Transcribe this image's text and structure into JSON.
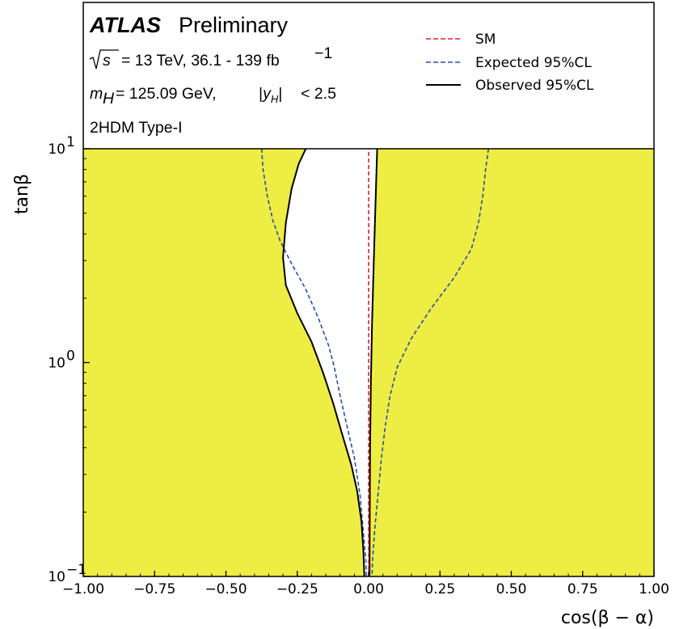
{
  "header": {
    "experiment": "ATLAS",
    "status": "Preliminary",
    "energy_line": "= 13 TeV, 36.1 - 139 fb",
    "energy_exp": "−1",
    "mass_line_value": "= 125.09 GeV,",
    "rapidity_cut": "< 2.5",
    "model": "2HDM Type-I"
  },
  "legend": [
    {
      "label": "SM",
      "color": "#e0202a",
      "style": "dashed"
    },
    {
      "label": "Expected 95%CL",
      "color": "#2a4fa0",
      "style": "dashed"
    },
    {
      "label": "Observed 95%CL",
      "color": "#000000",
      "style": "solid"
    }
  ],
  "colors": {
    "excluded_fill": "#eded44",
    "allowed_fill": "#ffffff"
  },
  "chart_data": {
    "type": "area",
    "xlabel": "cos(β − α)",
    "ylabel": "tanβ",
    "xlim": [
      -1.0,
      1.0
    ],
    "ylim": [
      0.1,
      10
    ],
    "yscale": "log",
    "x_ticks": [
      "−1.00",
      "−0.75",
      "−0.50",
      "−0.25",
      "0.00",
      "0.25",
      "0.50",
      "0.75",
      "1.00"
    ],
    "x_tick_values": [
      -1.0,
      -0.75,
      -0.5,
      -0.25,
      0.0,
      0.25,
      0.5,
      0.75,
      1.0
    ],
    "y_ticks": [
      {
        "base": "10",
        "exp": "−1",
        "value": 0.1
      },
      {
        "base": "10",
        "exp": "0",
        "value": 1
      },
      {
        "base": "10",
        "exp": "1",
        "value": 10
      }
    ],
    "series": [
      {
        "name": "SM",
        "points": [
          [
            0.0,
            0.1
          ],
          [
            0.0,
            10
          ]
        ]
      },
      {
        "name": "Expected 95%CL",
        "left": [
          [
            -0.375,
            10
          ],
          [
            -0.37,
            8
          ],
          [
            -0.355,
            6
          ],
          [
            -0.335,
            4.6
          ],
          [
            -0.31,
            3.7
          ],
          [
            -0.27,
            2.9
          ],
          [
            -0.22,
            2.2
          ],
          [
            -0.175,
            1.6
          ],
          [
            -0.14,
            1.2
          ],
          [
            -0.12,
            0.95
          ],
          [
            -0.1,
            0.7
          ],
          [
            -0.075,
            0.5
          ],
          [
            -0.05,
            0.36
          ],
          [
            -0.03,
            0.24
          ],
          [
            -0.018,
            0.16
          ],
          [
            -0.01,
            0.12
          ],
          [
            -0.008,
            0.1
          ]
        ],
        "right": [
          [
            0.42,
            10
          ],
          [
            0.41,
            8
          ],
          [
            0.4,
            6
          ],
          [
            0.385,
            4.5
          ],
          [
            0.36,
            3.4
          ],
          [
            0.3,
            2.5
          ],
          [
            0.22,
            1.8
          ],
          [
            0.15,
            1.3
          ],
          [
            0.1,
            0.95
          ],
          [
            0.075,
            0.7
          ],
          [
            0.058,
            0.5
          ],
          [
            0.045,
            0.36
          ],
          [
            0.034,
            0.25
          ],
          [
            0.022,
            0.17
          ],
          [
            0.014,
            0.12
          ],
          [
            0.012,
            0.1
          ]
        ]
      },
      {
        "name": "Observed 95%CL",
        "left": [
          [
            -0.22,
            10
          ],
          [
            -0.245,
            8.5
          ],
          [
            -0.27,
            6.5
          ],
          [
            -0.29,
            4.5
          ],
          [
            -0.3,
            3.1
          ],
          [
            -0.29,
            2.3
          ],
          [
            -0.25,
            1.7
          ],
          [
            -0.2,
            1.25
          ],
          [
            -0.16,
            0.9
          ],
          [
            -0.125,
            0.65
          ],
          [
            -0.09,
            0.45
          ],
          [
            -0.06,
            0.33
          ],
          [
            -0.04,
            0.25
          ],
          [
            -0.025,
            0.18
          ],
          [
            -0.018,
            0.13
          ],
          [
            -0.015,
            0.1
          ]
        ],
        "right": [
          [
            0.03,
            10
          ],
          [
            0.025,
            6
          ],
          [
            0.018,
            3
          ],
          [
            0.012,
            1.5
          ],
          [
            0.008,
            0.8
          ],
          [
            0.005,
            0.4
          ],
          [
            0.004,
            0.2
          ],
          [
            0.003,
            0.1
          ]
        ]
      }
    ]
  }
}
